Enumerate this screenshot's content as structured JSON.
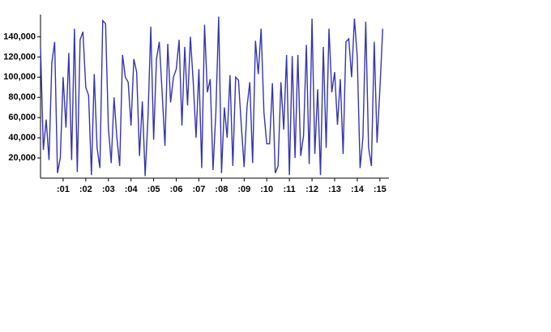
{
  "chart_data": {
    "type": "line",
    "x": [
      0,
      0.125,
      0.25,
      0.375,
      0.5,
      0.625,
      0.75,
      0.875,
      1,
      1.125,
      1.25,
      1.375,
      1.5,
      1.625,
      1.75,
      1.875,
      2,
      2.125,
      2.25,
      2.375,
      2.5,
      2.625,
      2.75,
      2.875,
      3,
      3.125,
      3.25,
      3.375,
      3.5,
      3.625,
      3.75,
      3.875,
      4,
      4.125,
      4.25,
      4.375,
      4.5,
      4.625,
      4.75,
      4.875,
      5,
      5.125,
      5.25,
      5.375,
      5.5,
      5.625,
      5.75,
      5.875,
      6,
      6.125,
      6.25,
      6.375,
      6.5,
      6.625,
      6.75,
      6.875,
      7,
      7.125,
      7.25,
      7.375,
      7.5,
      7.625,
      7.75,
      7.875,
      8,
      8.125,
      8.25,
      8.375,
      8.5,
      8.625,
      8.75,
      8.875,
      9,
      9.125,
      9.25,
      9.375,
      9.5,
      9.625,
      9.75,
      9.875,
      10,
      10.125,
      10.25,
      10.375,
      10.5,
      10.625,
      10.75,
      10.875,
      11,
      11.125,
      11.25,
      11.375,
      11.5,
      11.625,
      11.75,
      11.875,
      12,
      12.125,
      12.25,
      12.375,
      12.5,
      12.625,
      12.75,
      12.875,
      13,
      13.125,
      13.25,
      13.375,
      13.5,
      13.625,
      13.75,
      13.875,
      14,
      14.125,
      14.25,
      14.375,
      14.5,
      14.625,
      14.75,
      14.875,
      15,
      15.125
    ],
    "series": [
      {
        "color": "#3535b0",
        "values": [
          130000,
          28000,
          58000,
          18000,
          114000,
          135000,
          5000,
          20000,
          100000,
          50000,
          124000,
          18000,
          148000,
          6000,
          137000,
          145000,
          90000,
          82000,
          3000,
          103000,
          30000,
          10000,
          156000,
          153000,
          50000,
          15000,
          80000,
          40000,
          12000,
          122000,
          100000,
          95000,
          52000,
          118000,
          105000,
          22000,
          76000,
          2000,
          60000,
          150000,
          38000,
          118000,
          135000,
          85000,
          32000,
          133000,
          75000,
          100000,
          108000,
          137000,
          52000,
          130000,
          72000,
          140000,
          95000,
          40000,
          108000,
          10000,
          152000,
          85000,
          98000,
          8000,
          65000,
          160000,
          5000,
          70000,
          40000,
          102000,
          12000,
          100000,
          97000,
          52000,
          11000,
          70000,
          95000,
          15000,
          136000,
          103000,
          148000,
          65000,
          34000,
          34000,
          94000,
          5000,
          12000,
          95000,
          48000,
          122000,
          3000,
          121000,
          20000,
          122000,
          22000,
          42000,
          132000,
          14000,
          158000,
          24000,
          88000,
          3000,
          130000,
          30000,
          148000,
          85000,
          105000,
          53000,
          98000,
          24000,
          135000,
          138000,
          100000,
          158000,
          120000,
          10000,
          40000,
          155000,
          30000,
          12000,
          135000,
          35000,
          88000,
          148000
        ]
      }
    ],
    "xlim": [
      0,
      15.4
    ],
    "xticks": [
      {
        "value": 1,
        "label": ":01"
      },
      {
        "value": 2,
        "label": ":02"
      },
      {
        "value": 3,
        "label": ":03"
      },
      {
        "value": 4,
        "label": ":04"
      },
      {
        "value": 5,
        "label": ":05"
      },
      {
        "value": 6,
        "label": ":06"
      },
      {
        "value": 7,
        "label": ":07"
      },
      {
        "value": 8,
        "label": ":08"
      },
      {
        "value": 9,
        "label": ":09"
      },
      {
        "value": 10,
        "label": ":10"
      },
      {
        "value": 11,
        "label": ":11"
      },
      {
        "value": 12,
        "label": ":12"
      },
      {
        "value": 13,
        "label": ":13"
      },
      {
        "value": 14,
        "label": ":14"
      },
      {
        "value": 15,
        "label": ":15"
      }
    ],
    "ylim": [
      0,
      162000
    ],
    "yticks": [
      {
        "value": 20000,
        "label": "20,000"
      },
      {
        "value": 40000,
        "label": "40,000"
      },
      {
        "value": 60000,
        "label": "60,000"
      },
      {
        "value": 80000,
        "label": "80,000"
      },
      {
        "value": 100000,
        "label": "100,000"
      },
      {
        "value": 120000,
        "label": "120,000"
      },
      {
        "value": 140000,
        "label": "140,000"
      }
    ]
  }
}
